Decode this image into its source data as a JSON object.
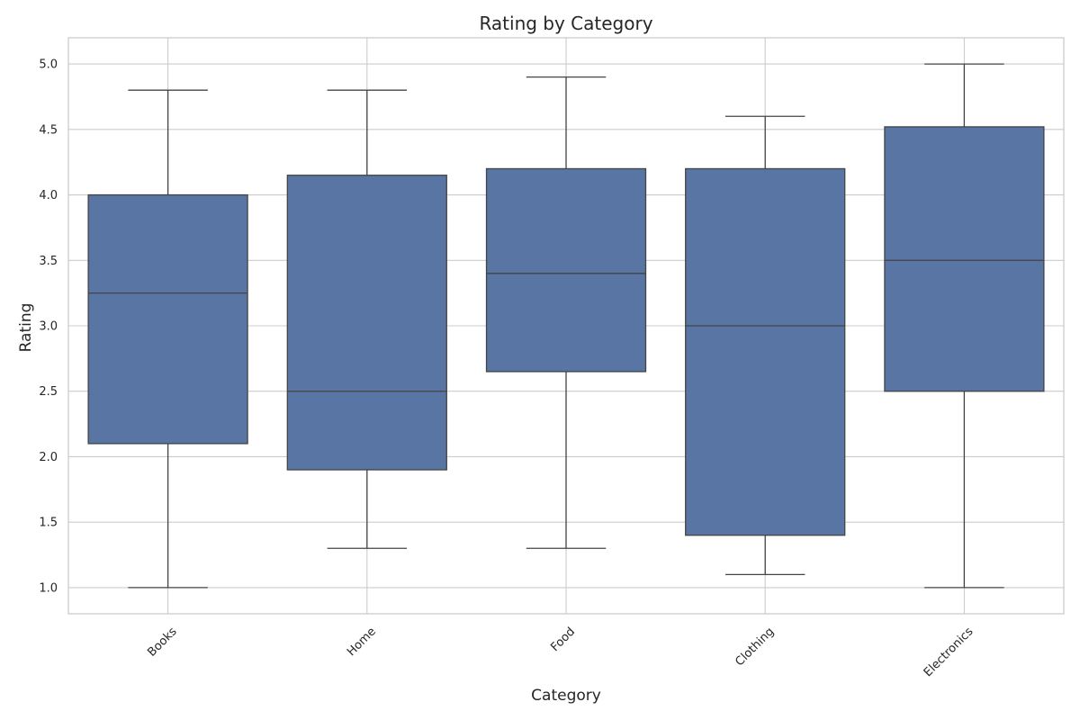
{
  "chart_data": {
    "type": "box",
    "title": "Rating by Category",
    "xlabel": "Category",
    "ylabel": "Rating",
    "categories": [
      "Books",
      "Home",
      "Food",
      "Clothing",
      "Electronics"
    ],
    "boxes": [
      {
        "category": "Books",
        "min": 1.0,
        "q1": 2.1,
        "median": 3.25,
        "q3": 4.0,
        "max": 4.8
      },
      {
        "category": "Home",
        "min": 1.3,
        "q1": 1.9,
        "median": 2.5,
        "q3": 4.15,
        "max": 4.8
      },
      {
        "category": "Food",
        "min": 1.3,
        "q1": 2.65,
        "median": 3.4,
        "q3": 4.2,
        "max": 4.9
      },
      {
        "category": "Clothing",
        "min": 1.1,
        "q1": 1.4,
        "median": 3.0,
        "q3": 4.2,
        "max": 4.6
      },
      {
        "category": "Electronics",
        "min": 1.0,
        "q1": 2.5,
        "median": 3.5,
        "q3": 4.52,
        "max": 5.0
      }
    ],
    "y_ticks": [
      "1.0",
      "1.5",
      "2.0",
      "2.5",
      "3.0",
      "3.5",
      "4.0",
      "4.5",
      "5.0"
    ],
    "ylim": [
      0.8,
      5.2
    ],
    "grid": "horizontal",
    "box_color": "#5875a4",
    "line_color": "#444444"
  }
}
